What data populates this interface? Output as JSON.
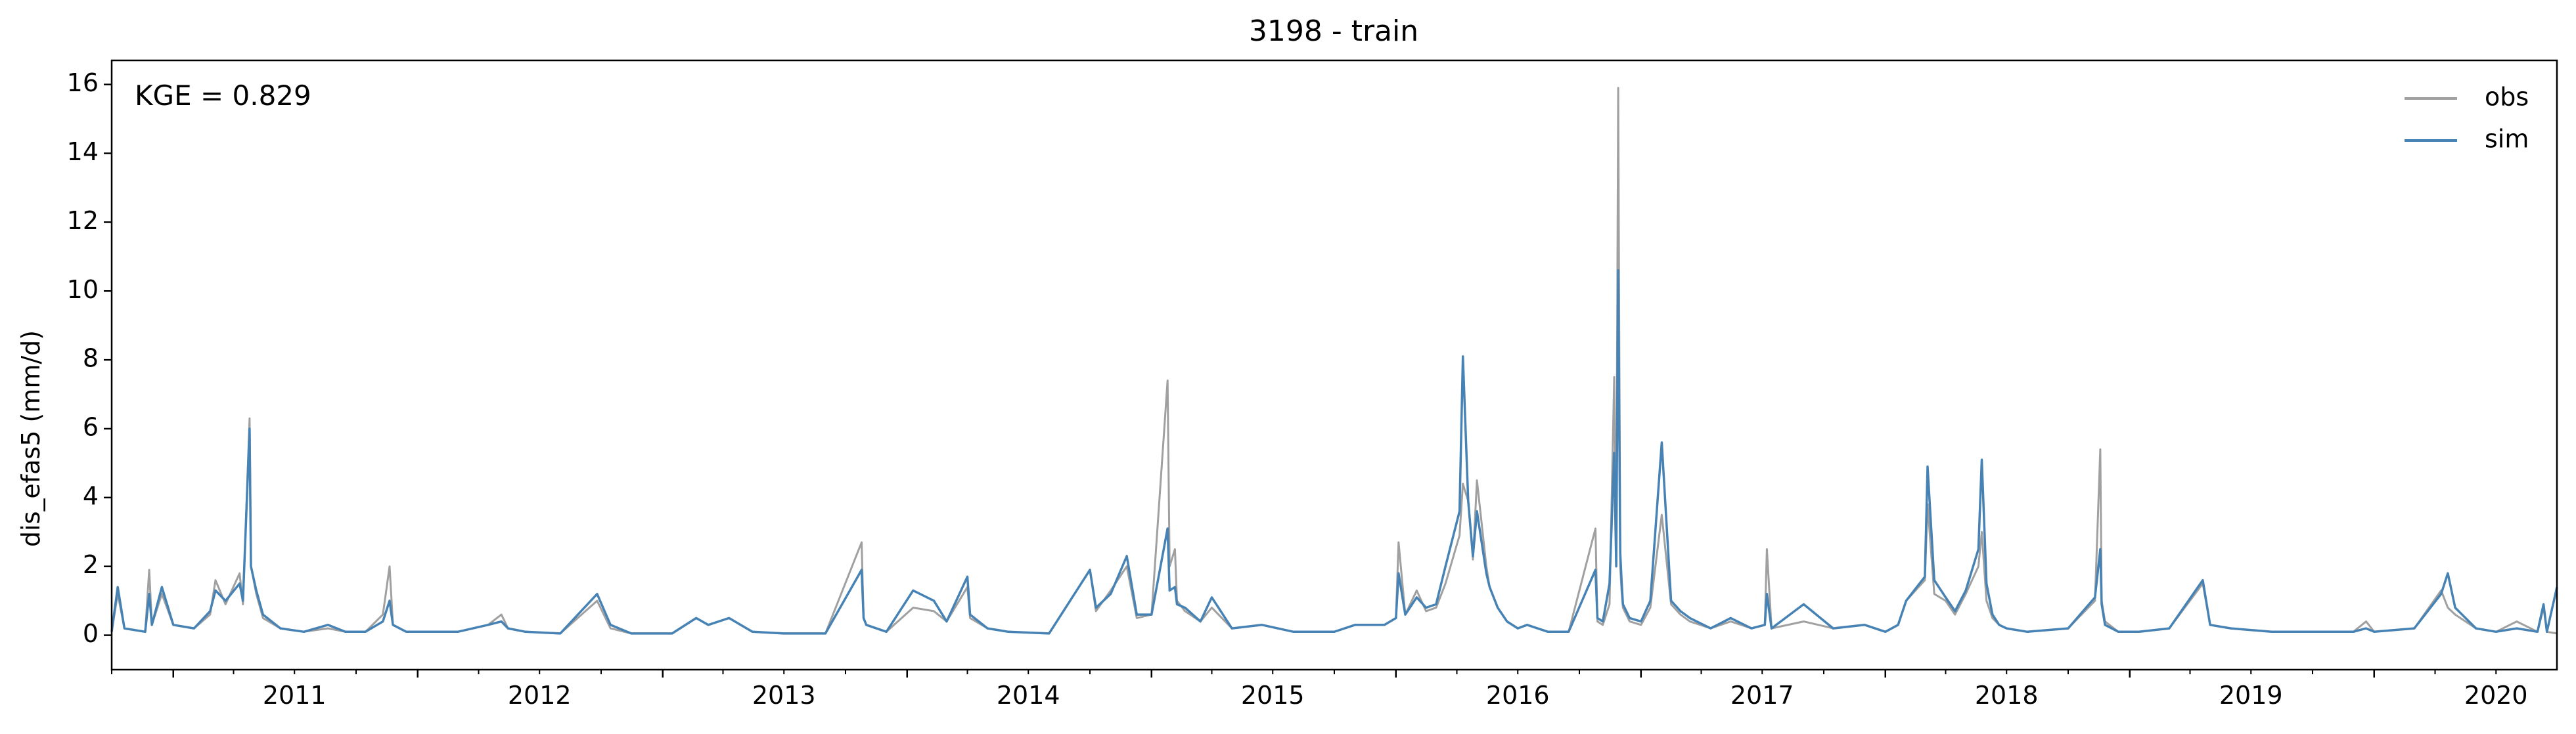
{
  "chart_data": {
    "type": "line",
    "title": "3198 - train",
    "xlabel": "",
    "ylabel": "dis_efas5 (mm/d)",
    "annotation": "KGE = 0.829",
    "xlim": [
      "2010-10-01",
      "2020-09-30"
    ],
    "ylim": [
      -1,
      16.7
    ],
    "y_ticks": [
      0,
      2,
      4,
      6,
      8,
      10,
      12,
      14,
      16
    ],
    "x_ticks": [
      {
        "date": "2011-01-01",
        "label": "2011"
      },
      {
        "date": "2012-01-01",
        "label": "2012"
      },
      {
        "date": "2013-01-01",
        "label": "2013"
      },
      {
        "date": "2014-01-01",
        "label": "2014"
      },
      {
        "date": "2015-01-01",
        "label": "2015"
      },
      {
        "date": "2016-01-01",
        "label": "2016"
      },
      {
        "date": "2017-01-01",
        "label": "2017"
      },
      {
        "date": "2018-01-01",
        "label": "2018"
      },
      {
        "date": "2019-01-01",
        "label": "2019"
      },
      {
        "date": "2020-01-01",
        "label": "2020"
      }
    ],
    "grid": false,
    "legend_position": "top-right",
    "series": [
      {
        "name": "obs",
        "color": "#a0a0a0",
        "x": [
          "2010-10-01",
          "2010-10-10",
          "2010-10-20",
          "2010-11-20",
          "2010-11-26",
          "2010-11-30",
          "2010-12-15",
          "2011-01-01",
          "2011-02-01",
          "2011-02-25",
          "2011-03-05",
          "2011-03-20",
          "2011-04-10",
          "2011-04-15",
          "2011-04-25",
          "2011-04-27",
          "2011-05-05",
          "2011-05-15",
          "2011-06-10",
          "2011-07-15",
          "2011-08-20",
          "2011-09-15",
          "2011-10-15",
          "2011-11-10",
          "2011-11-20",
          "2011-11-25",
          "2011-12-15",
          "2012-01-15",
          "2012-03-01",
          "2012-04-15",
          "2012-05-05",
          "2012-05-15",
          "2012-06-10",
          "2012-08-01",
          "2012-09-25",
          "2012-10-15",
          "2012-11-15",
          "2013-01-15",
          "2013-02-20",
          "2013-03-10",
          "2013-04-10",
          "2013-05-15",
          "2013-07-01",
          "2013-09-01",
          "2013-10-25",
          "2013-10-28",
          "2013-11-01",
          "2013-12-01",
          "2014-01-10",
          "2014-02-10",
          "2014-03-01",
          "2014-04-01",
          "2014-04-05",
          "2014-05-01",
          "2014-06-01",
          "2014-08-01",
          "2014-10-01",
          "2014-10-10",
          "2014-11-01",
          "2014-11-25",
          "2014-12-10",
          "2015-01-01",
          "2015-01-25",
          "2015-01-28",
          "2015-02-05",
          "2015-02-08",
          "2015-02-20",
          "2015-03-15",
          "2015-04-01",
          "2015-05-01",
          "2015-06-15",
          "2015-08-01",
          "2015-10-01",
          "2015-11-01",
          "2015-12-15",
          "2016-01-01",
          "2016-01-05",
          "2016-01-15",
          "2016-02-01",
          "2016-02-15",
          "2016-03-01",
          "2016-03-15",
          "2016-04-05",
          "2016-04-10",
          "2016-04-18",
          "2016-04-25",
          "2016-05-01",
          "2016-05-15",
          "2016-05-20",
          "2016-06-01",
          "2016-06-15",
          "2016-07-01",
          "2016-07-15",
          "2016-08-15",
          "2016-09-15",
          "2016-10-25",
          "2016-10-28",
          "2016-11-05",
          "2016-11-15",
          "2016-11-22",
          "2016-11-25",
          "2016-11-28",
          "2016-12-01",
          "2016-12-03",
          "2016-12-05",
          "2016-12-15",
          "2017-01-01",
          "2017-01-15",
          "2017-02-01",
          "2017-02-15",
          "2017-03-01",
          "2017-03-15",
          "2017-04-15",
          "2017-05-15",
          "2017-06-15",
          "2017-07-05",
          "2017-07-08",
          "2017-07-15",
          "2017-09-01",
          "2017-10-15",
          "2017-12-01",
          "2018-01-01",
          "2018-01-20",
          "2018-02-01",
          "2018-03-01",
          "2018-03-05",
          "2018-03-15",
          "2018-04-01",
          "2018-04-15",
          "2018-05-01",
          "2018-05-20",
          "2018-05-25",
          "2018-06-01",
          "2018-06-10",
          "2018-06-20",
          "2018-07-01",
          "2018-08-01",
          "2018-10-01",
          "2018-11-10",
          "2018-11-18",
          "2018-11-20",
          "2018-11-25",
          "2018-12-15",
          "2019-01-15",
          "2019-03-01",
          "2019-04-20",
          "2019-05-01",
          "2019-06-01",
          "2019-08-01",
          "2019-10-01",
          "2019-12-01",
          "2019-12-20",
          "2020-01-01",
          "2020-03-01",
          "2020-04-10",
          "2020-04-20",
          "2020-05-01",
          "2020-06-01",
          "2020-07-01",
          "2020-08-01",
          "2020-09-01",
          "2020-09-10",
          "2020-09-15",
          "2020-09-30"
        ],
        "values": [
          0.1,
          1.2,
          0.2,
          0.1,
          1.9,
          0.3,
          1.2,
          0.3,
          0.2,
          0.6,
          1.6,
          0.9,
          1.8,
          0.9,
          6.3,
          2.0,
          1.2,
          0.5,
          0.2,
          0.1,
          0.2,
          0.1,
          0.1,
          0.6,
          2.0,
          0.3,
          0.1,
          0.1,
          0.1,
          0.3,
          0.6,
          0.2,
          0.1,
          0.05,
          1.0,
          0.2,
          0.05,
          0.05,
          0.5,
          0.3,
          0.5,
          0.1,
          0.05,
          0.05,
          2.7,
          0.5,
          0.3,
          0.1,
          0.8,
          0.7,
          0.4,
          1.4,
          0.5,
          0.2,
          0.1,
          0.05,
          1.9,
          0.7,
          1.3,
          2.0,
          0.5,
          0.6,
          7.4,
          2.0,
          2.5,
          1.0,
          0.7,
          0.4,
          0.8,
          0.2,
          0.3,
          0.1,
          0.1,
          0.3,
          0.3,
          0.5,
          2.7,
          0.6,
          1.3,
          0.7,
          0.8,
          1.5,
          2.9,
          4.4,
          3.9,
          2.2,
          4.5,
          2.0,
          1.4,
          0.8,
          0.4,
          0.2,
          0.3,
          0.1,
          0.1,
          3.1,
          0.4,
          0.3,
          0.9,
          7.5,
          2.0,
          15.9,
          2.0,
          1.3,
          0.8,
          0.4,
          0.3,
          0.8,
          3.5,
          0.9,
          0.6,
          0.4,
          0.2,
          0.4,
          0.2,
          0.3,
          2.5,
          0.2,
          0.4,
          0.2,
          0.3,
          0.1,
          0.3,
          1.0,
          1.6,
          3.8,
          1.2,
          1.0,
          0.6,
          1.2,
          2.0,
          3.0,
          1.0,
          0.5,
          0.3,
          0.2,
          0.1,
          0.2,
          1.0,
          5.4,
          1.0,
          0.4,
          0.1,
          0.1,
          0.2,
          1.5,
          0.3,
          0.2,
          0.1,
          0.1,
          0.1,
          0.4,
          0.1,
          0.2,
          1.3,
          0.8,
          0.6,
          0.2,
          0.1,
          0.4,
          0.1,
          0.8,
          0.1,
          0.05
        ]
      },
      {
        "name": "sim",
        "color": "#4682b4",
        "x": [
          "2010-10-01",
          "2010-10-10",
          "2010-10-20",
          "2010-11-20",
          "2010-11-26",
          "2010-11-30",
          "2010-12-15",
          "2011-01-01",
          "2011-02-01",
          "2011-02-25",
          "2011-03-05",
          "2011-03-20",
          "2011-04-10",
          "2011-04-15",
          "2011-04-25",
          "2011-04-27",
          "2011-05-05",
          "2011-05-15",
          "2011-06-10",
          "2011-07-15",
          "2011-08-20",
          "2011-09-15",
          "2011-10-15",
          "2011-11-10",
          "2011-11-20",
          "2011-11-25",
          "2011-12-15",
          "2012-01-15",
          "2012-03-01",
          "2012-04-15",
          "2012-05-05",
          "2012-05-15",
          "2012-06-10",
          "2012-08-01",
          "2012-09-25",
          "2012-10-15",
          "2012-11-15",
          "2013-01-15",
          "2013-02-20",
          "2013-03-10",
          "2013-04-10",
          "2013-05-15",
          "2013-07-01",
          "2013-09-01",
          "2013-10-25",
          "2013-10-28",
          "2013-11-01",
          "2013-12-01",
          "2014-01-10",
          "2014-02-10",
          "2014-03-01",
          "2014-04-01",
          "2014-04-05",
          "2014-05-01",
          "2014-06-01",
          "2014-08-01",
          "2014-10-01",
          "2014-10-10",
          "2014-11-01",
          "2014-11-25",
          "2014-12-10",
          "2015-01-01",
          "2015-01-25",
          "2015-01-28",
          "2015-02-05",
          "2015-02-08",
          "2015-02-20",
          "2015-03-15",
          "2015-04-01",
          "2015-05-01",
          "2015-06-15",
          "2015-08-01",
          "2015-10-01",
          "2015-11-01",
          "2015-12-15",
          "2016-01-01",
          "2016-01-05",
          "2016-01-15",
          "2016-02-01",
          "2016-02-15",
          "2016-03-01",
          "2016-03-15",
          "2016-04-05",
          "2016-04-10",
          "2016-04-18",
          "2016-04-25",
          "2016-05-01",
          "2016-05-15",
          "2016-05-20",
          "2016-06-01",
          "2016-06-15",
          "2016-07-01",
          "2016-07-15",
          "2016-08-15",
          "2016-09-15",
          "2016-10-25",
          "2016-10-28",
          "2016-11-05",
          "2016-11-15",
          "2016-11-22",
          "2016-11-25",
          "2016-11-28",
          "2016-12-01",
          "2016-12-03",
          "2016-12-05",
          "2016-12-15",
          "2017-01-01",
          "2017-01-15",
          "2017-02-01",
          "2017-02-15",
          "2017-03-01",
          "2017-03-15",
          "2017-04-15",
          "2017-05-15",
          "2017-06-15",
          "2017-07-05",
          "2017-07-08",
          "2017-07-15",
          "2017-09-01",
          "2017-10-15",
          "2017-12-01",
          "2018-01-01",
          "2018-01-20",
          "2018-02-01",
          "2018-03-01",
          "2018-03-05",
          "2018-03-15",
          "2018-04-01",
          "2018-04-15",
          "2018-05-01",
          "2018-05-20",
          "2018-05-25",
          "2018-06-01",
          "2018-06-10",
          "2018-06-20",
          "2018-07-01",
          "2018-08-01",
          "2018-10-01",
          "2018-11-10",
          "2018-11-18",
          "2018-11-20",
          "2018-11-25",
          "2018-12-15",
          "2019-01-15",
          "2019-03-01",
          "2019-04-20",
          "2019-05-01",
          "2019-06-01",
          "2019-08-01",
          "2019-10-01",
          "2019-12-01",
          "2019-12-20",
          "2020-01-01",
          "2020-03-01",
          "2020-04-10",
          "2020-04-20",
          "2020-05-01",
          "2020-06-01",
          "2020-07-01",
          "2020-08-01",
          "2020-09-01",
          "2020-09-10",
          "2020-09-15",
          "2020-09-30"
        ],
        "values": [
          0.1,
          1.4,
          0.2,
          0.1,
          1.2,
          0.3,
          1.4,
          0.3,
          0.2,
          0.7,
          1.3,
          1.0,
          1.5,
          1.0,
          6.0,
          2.0,
          1.3,
          0.6,
          0.2,
          0.1,
          0.3,
          0.1,
          0.1,
          0.4,
          1.0,
          0.3,
          0.1,
          0.1,
          0.1,
          0.3,
          0.4,
          0.2,
          0.1,
          0.05,
          1.2,
          0.3,
          0.05,
          0.05,
          0.5,
          0.3,
          0.5,
          0.1,
          0.05,
          0.05,
          1.9,
          0.5,
          0.3,
          0.1,
          1.3,
          1.0,
          0.4,
          1.7,
          0.6,
          0.2,
          0.1,
          0.05,
          1.9,
          0.8,
          1.2,
          2.3,
          0.6,
          0.6,
          3.1,
          1.3,
          1.4,
          0.9,
          0.8,
          0.4,
          1.1,
          0.2,
          0.3,
          0.1,
          0.1,
          0.3,
          0.3,
          0.5,
          1.8,
          0.6,
          1.1,
          0.8,
          0.9,
          2.0,
          3.6,
          8.1,
          3.9,
          2.3,
          3.6,
          1.8,
          1.4,
          0.8,
          0.4,
          0.2,
          0.3,
          0.1,
          0.1,
          1.9,
          0.5,
          0.4,
          1.5,
          5.3,
          2.0,
          10.6,
          2.4,
          1.6,
          0.9,
          0.5,
          0.4,
          1.0,
          5.6,
          1.0,
          0.7,
          0.5,
          0.2,
          0.5,
          0.2,
          0.3,
          1.2,
          0.2,
          0.9,
          0.2,
          0.3,
          0.1,
          0.3,
          1.0,
          1.7,
          4.9,
          1.6,
          1.1,
          0.7,
          1.3,
          2.5,
          5.1,
          1.5,
          0.6,
          0.3,
          0.2,
          0.1,
          0.2,
          1.1,
          2.5,
          0.9,
          0.3,
          0.1,
          0.1,
          0.2,
          1.6,
          0.3,
          0.2,
          0.1,
          0.1,
          0.1,
          0.2,
          0.1,
          0.2,
          1.2,
          1.8,
          0.8,
          0.2,
          0.1,
          0.2,
          0.1,
          0.9,
          0.1,
          1.4
        ]
      }
    ]
  }
}
